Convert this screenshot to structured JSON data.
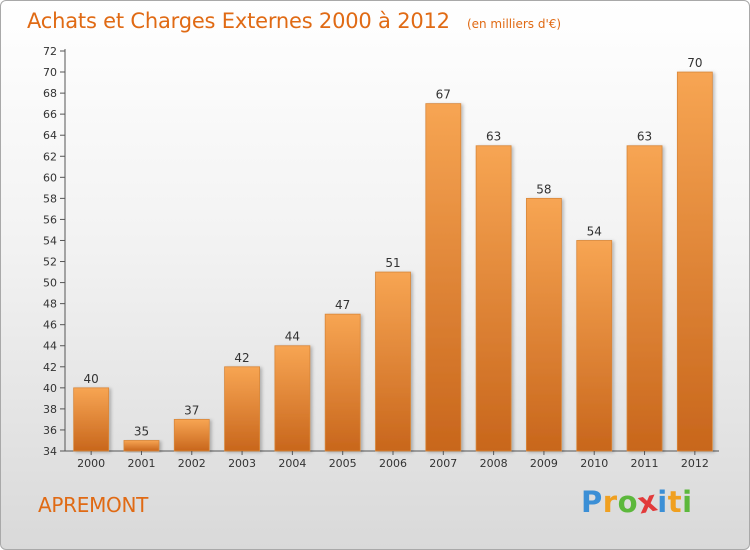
{
  "chart_data": {
    "type": "bar",
    "title": "Achats et Charges Externes 2000 à 2012",
    "subtitle": "(en milliers d'€)",
    "xlabel": "",
    "ylabel": "",
    "categories": [
      "2000",
      "2001",
      "2002",
      "2003",
      "2004",
      "2005",
      "2006",
      "2007",
      "2008",
      "2009",
      "2010",
      "2011",
      "2012"
    ],
    "values": [
      40,
      35,
      37,
      42,
      44,
      47,
      51,
      67,
      63,
      58,
      54,
      63,
      70
    ],
    "ylim": [
      34,
      72
    ],
    "ytick_step": 2,
    "grid": false,
    "legend": "none",
    "bar_color_top": "#f7a553",
    "bar_color_bottom": "#c8661c"
  },
  "place_name": "APREMONT",
  "logo": {
    "letters": [
      "P",
      "r",
      "o",
      "x",
      "i",
      "t",
      "i"
    ],
    "colors": [
      "#3b8fd6",
      "#f0a020",
      "#5cb83c",
      "#e23a3a",
      "#3b8fd6",
      "#f0a020",
      "#5cb83c"
    ]
  }
}
